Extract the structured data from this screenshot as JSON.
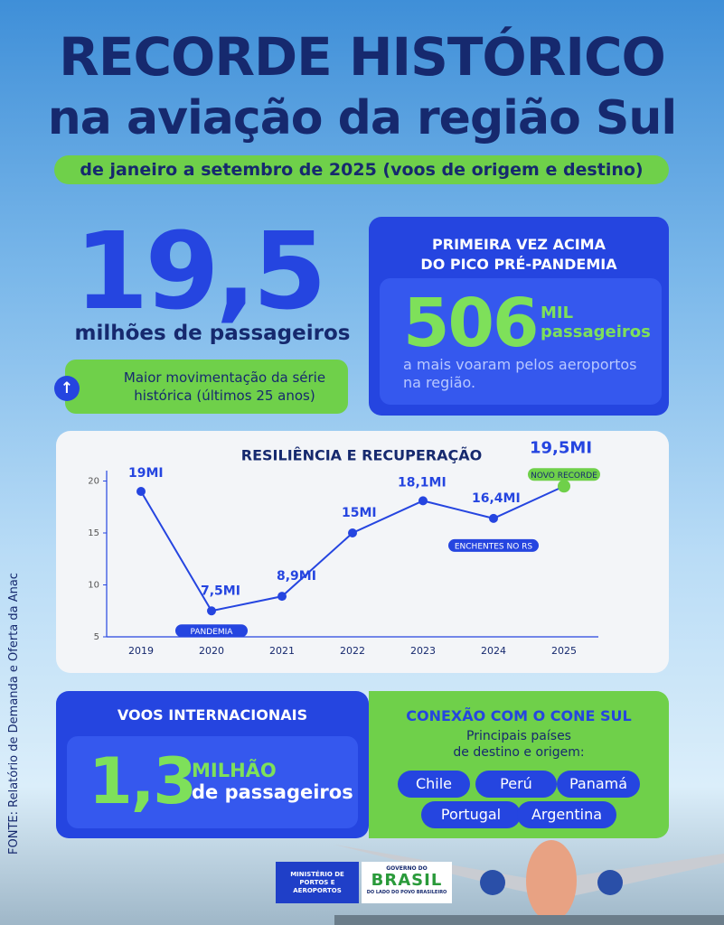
{
  "header": {
    "title_line1": "RECORDE HISTÓRICO",
    "title_line2": "na aviação da região Sul",
    "subtitle": "de janeiro a setembro de 2025 (voos de origem e destino)"
  },
  "headline": {
    "value": "19,5",
    "label": "milhões de passageiros",
    "note_line1": "Maior movimentação da série",
    "note_line2": "histórica (últimos 25 anos)"
  },
  "pico": {
    "title_line1": "PRIMEIRA VEZ ACIMA",
    "title_line2": "DO PICO PRÉ-PANDEMIA",
    "value": "506",
    "unit_line1": "MIL",
    "unit_line2": "passageiros",
    "text_line1": "a mais voaram pelos aeroportos",
    "text_line2": "na região."
  },
  "chart_data": {
    "type": "line",
    "title": "RESILIÊNCIA E RECUPERAÇÃO",
    "categories": [
      "2019",
      "2020",
      "2021",
      "2022",
      "2023",
      "2024",
      "2025"
    ],
    "values": [
      19,
      7.5,
      8.9,
      15,
      18.1,
      16.4,
      19.5
    ],
    "value_labels": [
      "19MI",
      "7,5MI",
      "8,9MI",
      "15MI",
      "18,1MI",
      "16,4MI",
      "19,5MI"
    ],
    "annotations": [
      "PANDEMIA",
      "ENCHENTES NO RS",
      "NOVO RECORDE"
    ],
    "color": "#2545e0",
    "ylim": [
      5,
      21
    ],
    "yticks": [
      5,
      10,
      15,
      20
    ]
  },
  "international": {
    "title": "VOOS INTERNACIONAIS",
    "value": "1,3",
    "unit_line1": "MILHÃO",
    "unit_line2": "de passageiros"
  },
  "cone_sul": {
    "title": "CONEXÃO COM O CONE SUL",
    "subtitle_line1": "Principais países",
    "subtitle_line2": "de destino e origem:",
    "countries": [
      "Chile",
      "Perú",
      "Panamá",
      "Portugal",
      "Argentina"
    ]
  },
  "source": "FONTE: Relatório de Demanda e Oferta da Anac",
  "footer": {
    "ministry_line1": "MINISTÉRIO DE",
    "ministry_line2": "PORTOS E",
    "ministry_line3": "AEROPORTOS",
    "gov_top": "GOVERNO DO",
    "gov_name": "BRASIL",
    "gov_sub": "DO LADO DO POVO BRASILEIRO"
  }
}
